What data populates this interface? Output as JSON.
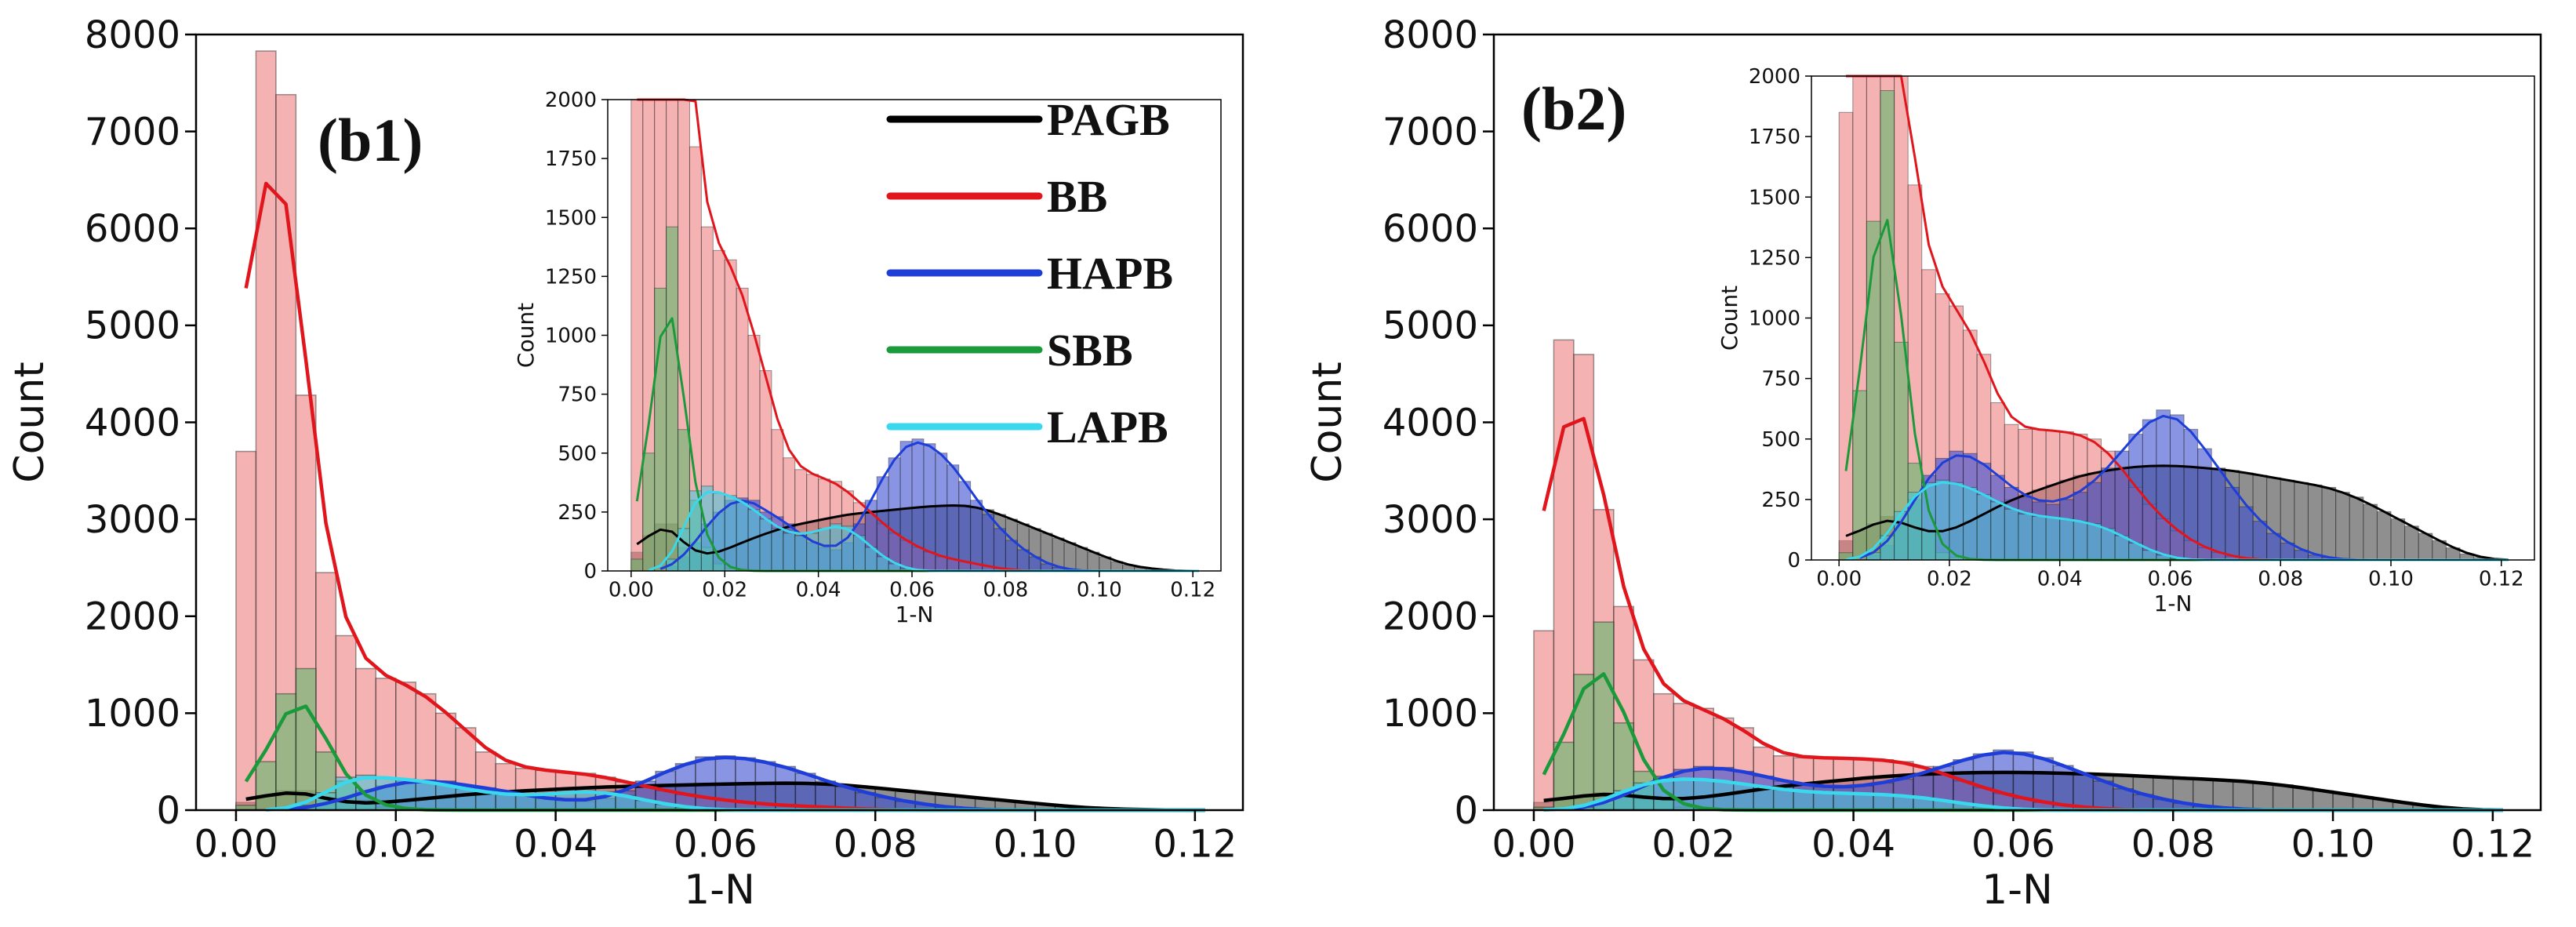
{
  "chart_data": [
    {
      "type": "histogram",
      "panel_label": "(b1)",
      "xlabel": "1-N",
      "ylabel": "Count",
      "xlim": [
        -0.005,
        0.126
      ],
      "ylim": [
        0,
        8000
      ],
      "x_ticks": [
        "0.00",
        "0.02",
        "0.04",
        "0.06",
        "0.08",
        "0.10",
        "0.12"
      ],
      "y_ticks": [
        "0",
        "1000",
        "2000",
        "3000",
        "4000",
        "5000",
        "6000",
        "7000",
        "8000"
      ],
      "bin_width": 0.0025,
      "bin_start": 0.0,
      "legend": {
        "placement": "upper-center",
        "entries": [
          {
            "name": "PAGB",
            "color": "#000000"
          },
          {
            "name": "BB",
            "color": "#e0161c"
          },
          {
            "name": "HAPB",
            "color": "#1f3ed8"
          },
          {
            "name": "SBB",
            "color": "#1a9a3a"
          },
          {
            "name": "LAPB",
            "color": "#3ad8ec"
          }
        ]
      },
      "series": [
        {
          "name": "PAGB",
          "color": "#000000",
          "fill": "#444444",
          "counts": [
            80,
            150,
            200,
            200,
            100,
            80,
            60,
            80,
            100,
            120,
            140,
            160,
            175,
            190,
            200,
            210,
            220,
            230,
            240,
            245,
            250,
            255,
            260,
            265,
            270,
            275,
            275,
            280,
            280,
            270,
            260,
            240,
            220,
            200,
            180,
            160,
            140,
            120,
            100,
            80,
            60,
            40,
            25,
            15,
            10,
            5,
            0,
            0,
            0
          ]
        },
        {
          "name": "BB",
          "color": "#e0161c",
          "fill": "#ef7f80",
          "counts": [
            3700,
            7830,
            7380,
            4280,
            2450,
            1800,
            1460,
            1360,
            1320,
            1200,
            1000,
            850,
            600,
            480,
            430,
            410,
            390,
            380,
            340,
            290,
            250,
            200,
            160,
            130,
            100,
            80,
            60,
            50,
            40,
            30,
            20,
            10,
            5,
            0,
            0,
            0,
            0,
            0,
            0,
            0,
            0,
            0,
            0,
            0,
            0,
            0,
            0,
            0,
            0
          ]
        },
        {
          "name": "HAPB",
          "color": "#1f3ed8",
          "fill": "#3a4fd0",
          "counts": [
            0,
            0,
            0,
            20,
            60,
            120,
            200,
            250,
            300,
            310,
            300,
            250,
            230,
            200,
            150,
            120,
            100,
            90,
            120,
            200,
            300,
            400,
            480,
            550,
            560,
            540,
            500,
            450,
            380,
            300,
            240,
            180,
            130,
            90,
            60,
            30,
            15,
            5,
            0,
            0,
            0,
            0,
            0,
            0,
            0,
            0,
            0,
            0,
            0
          ]
        },
        {
          "name": "SBB",
          "color": "#1a9a3a",
          "fill": "#5fb86a",
          "counts": [
            50,
            500,
            1200,
            1460,
            600,
            300,
            100,
            30,
            10,
            0,
            0,
            0,
            0,
            0,
            0,
            0,
            0,
            0,
            0,
            0,
            0,
            0,
            0,
            0,
            0,
            0,
            0,
            0,
            0,
            0,
            0,
            0,
            0,
            0,
            0,
            0,
            0,
            0,
            0,
            0,
            0,
            0,
            0,
            0,
            0,
            0,
            0,
            0,
            0
          ]
        },
        {
          "name": "LAPB",
          "color": "#3ad8ec",
          "fill": "#4cc4d8",
          "counts": [
            0,
            0,
            0,
            50,
            180,
            340,
            360,
            330,
            320,
            300,
            260,
            220,
            180,
            160,
            150,
            160,
            180,
            200,
            190,
            150,
            100,
            60,
            30,
            10,
            0,
            0,
            0,
            0,
            0,
            0,
            0,
            0,
            0,
            0,
            0,
            0,
            0,
            0,
            0,
            0,
            0,
            0,
            0,
            0,
            0,
            0,
            0,
            0,
            0
          ]
        }
      ],
      "inset": {
        "xlabel": "1-N",
        "ylabel": "Count",
        "xlim": [
          -0.005,
          0.126
        ],
        "ylim": [
          0,
          2000
        ],
        "x_ticks": [
          "0.00",
          "0.02",
          "0.04",
          "0.06",
          "0.08",
          "0.10",
          "0.12"
        ],
        "y_ticks": [
          "0",
          "250",
          "500",
          "750",
          "1000",
          "1250",
          "1500",
          "1750",
          "2000"
        ]
      }
    },
    {
      "type": "histogram",
      "panel_label": "(b2)",
      "xlabel": "1-N",
      "ylabel": "Count",
      "xlim": [
        -0.005,
        0.126
      ],
      "ylim": [
        0,
        8000
      ],
      "x_ticks": [
        "0.00",
        "0.02",
        "0.04",
        "0.06",
        "0.08",
        "0.10",
        "0.12"
      ],
      "y_ticks": [
        "0",
        "1000",
        "2000",
        "3000",
        "4000",
        "5000",
        "6000",
        "7000",
        "8000"
      ],
      "bin_width": 0.0025,
      "bin_start": 0.0,
      "series": [
        {
          "name": "PAGB",
          "color": "#000000",
          "fill": "#444444",
          "counts": [
            80,
            120,
            150,
            180,
            160,
            130,
            110,
            110,
            130,
            160,
            190,
            220,
            250,
            270,
            290,
            310,
            330,
            350,
            360,
            370,
            380,
            385,
            390,
            390,
            390,
            385,
            380,
            375,
            370,
            360,
            350,
            340,
            330,
            320,
            310,
            300,
            280,
            260,
            230,
            200,
            170,
            140,
            110,
            80,
            50,
            25,
            10,
            0,
            0
          ]
        },
        {
          "name": "BB",
          "color": "#e0161c",
          "fill": "#ef7f80",
          "counts": [
            1850,
            4850,
            4700,
            3100,
            2100,
            1550,
            1200,
            1100,
            1050,
            950,
            850,
            650,
            560,
            540,
            540,
            535,
            530,
            520,
            500,
            450,
            380,
            300,
            230,
            170,
            120,
            80,
            50,
            30,
            15,
            5,
            0,
            0,
            0,
            0,
            0,
            0,
            0,
            0,
            0,
            0,
            0,
            0,
            0,
            0,
            0,
            0,
            0,
            0,
            0
          ]
        },
        {
          "name": "HAPB",
          "color": "#1f3ed8",
          "fill": "#3a4fd0",
          "counts": [
            0,
            0,
            20,
            60,
            150,
            250,
            350,
            420,
            450,
            440,
            400,
            350,
            300,
            260,
            240,
            230,
            250,
            280,
            320,
            380,
            450,
            520,
            580,
            620,
            600,
            540,
            460,
            380,
            300,
            220,
            160,
            110,
            70,
            40,
            20,
            10,
            0,
            0,
            0,
            0,
            0,
            0,
            0,
            0,
            0,
            0,
            0,
            0,
            0
          ]
        },
        {
          "name": "SBB",
          "color": "#1a9a3a",
          "fill": "#5fb86a",
          "counts": [
            30,
            700,
            1400,
            1940,
            900,
            400,
            120,
            30,
            10,
            0,
            0,
            0,
            0,
            0,
            0,
            0,
            0,
            0,
            0,
            0,
            0,
            0,
            0,
            0,
            0,
            0,
            0,
            0,
            0,
            0,
            0,
            0,
            0,
            0,
            0,
            0,
            0,
            0,
            0,
            0,
            0,
            0,
            0,
            0,
            0,
            0,
            0,
            0,
            0
          ]
        },
        {
          "name": "LAPB",
          "color": "#3ad8ec",
          "fill": "#4cc4d8",
          "counts": [
            0,
            0,
            30,
            100,
            200,
            280,
            320,
            330,
            320,
            300,
            270,
            240,
            210,
            190,
            180,
            175,
            170,
            160,
            150,
            130,
            100,
            70,
            40,
            20,
            5,
            0,
            0,
            0,
            0,
            0,
            0,
            0,
            0,
            0,
            0,
            0,
            0,
            0,
            0,
            0,
            0,
            0,
            0,
            0,
            0,
            0,
            0,
            0,
            0
          ]
        }
      ],
      "inset": {
        "xlabel": "1-N",
        "ylabel": "Count",
        "xlim": [
          -0.005,
          0.126
        ],
        "ylim": [
          0,
          2000
        ],
        "x_ticks": [
          "0.00",
          "0.02",
          "0.04",
          "0.06",
          "0.08",
          "0.10",
          "0.12"
        ],
        "y_ticks": [
          "0",
          "250",
          "500",
          "750",
          "1000",
          "1250",
          "1500",
          "1750",
          "2000"
        ]
      }
    }
  ]
}
